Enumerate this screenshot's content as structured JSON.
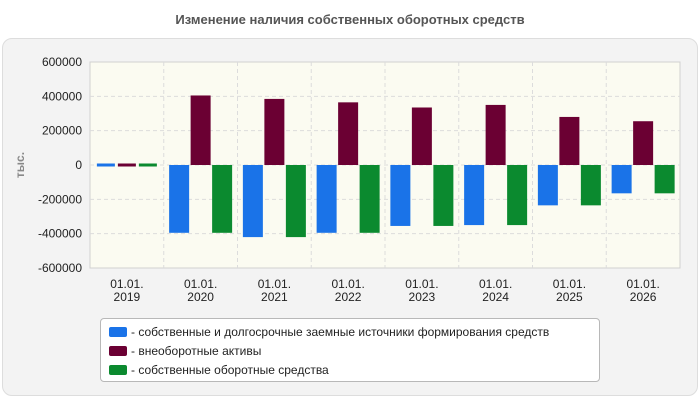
{
  "chart_data": {
    "type": "bar",
    "title": "Изменение наличия собственных оборотных средств",
    "ylabel": "тыс.",
    "categories": [
      "01.01.\n2019",
      "01.01.\n2020",
      "01.01.\n2021",
      "01.01.\n2022",
      "01.01.\n2023",
      "01.01.\n2024",
      "01.01.\n2025",
      "01.01.\n2026"
    ],
    "ylim": [
      -600000,
      600000
    ],
    "yticks": [
      600000,
      400000,
      200000,
      0,
      -200000,
      -400000,
      -600000
    ],
    "grid": true,
    "legend_position": "bottom",
    "series": [
      {
        "name": "- собственные и долгосрочные заемные источники формирования средств",
        "color": "#1a73e8",
        "values": [
          8000,
          -395000,
          -420000,
          -395000,
          -355000,
          -350000,
          -235000,
          -165000
        ]
      },
      {
        "name": "- внеоборотные активы",
        "color": "#6b0033",
        "values": [
          8000,
          405000,
          385000,
          365000,
          335000,
          350000,
          280000,
          255000
        ]
      },
      {
        "name": "- собственные оборотные средства",
        "color": "#0b8a2f",
        "values": [
          8000,
          -395000,
          -420000,
          -395000,
          -355000,
          -350000,
          -235000,
          -165000
        ]
      }
    ]
  }
}
